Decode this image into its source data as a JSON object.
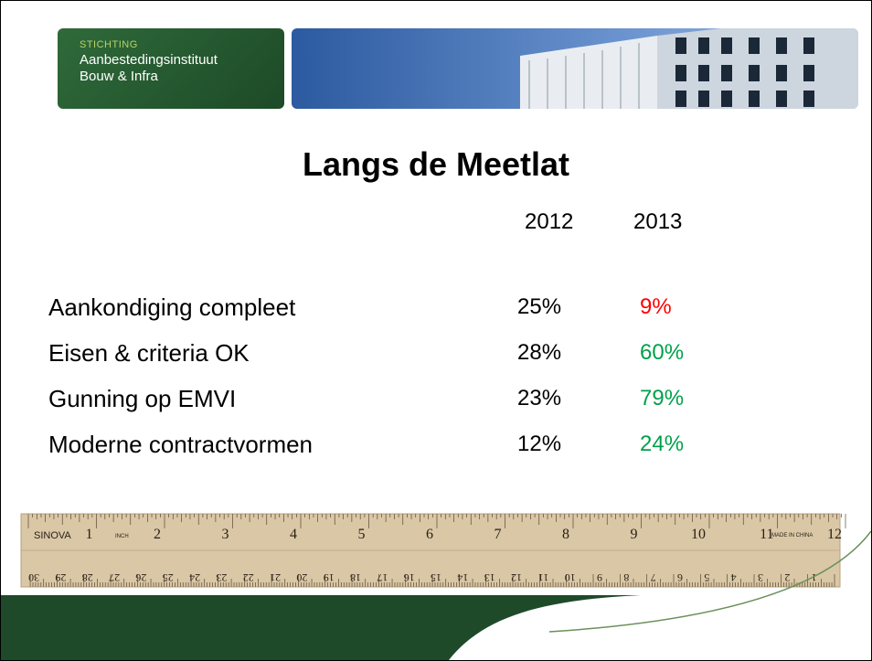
{
  "logo": {
    "line1": "STICHTING",
    "line2": "Aanbestedingsinstituut",
    "line3": "Bouw & Infra"
  },
  "title": "Langs de Meetlat",
  "table": {
    "header": [
      "2012",
      "2013"
    ],
    "rows": [
      {
        "label": "Aankondiging compleet",
        "values": [
          "25%",
          "9%"
        ],
        "color_2013": "#ff0000"
      },
      {
        "label": "Eisen & criteria OK",
        "values": [
          "28%",
          "60%"
        ],
        "color_2013": "#00a04a"
      },
      {
        "label": "Gunning op EMVI",
        "values": [
          "23%",
          "79%"
        ],
        "color_2013": "#00a04a"
      },
      {
        "label": "Moderne contractvormen",
        "values": [
          "12%",
          "24%"
        ],
        "color_2013": "#00a04a"
      }
    ]
  },
  "ruler": {
    "brand": "SINOVA",
    "unit": "INCH",
    "made": "MADE IN CHINA",
    "inches": [
      "1",
      "2",
      "3",
      "4",
      "5",
      "6",
      "7",
      "8",
      "9",
      "10",
      "11",
      "12"
    ],
    "cm": [
      "1",
      "2",
      "3",
      "4",
      "5",
      "6",
      "7",
      "8",
      "9",
      "10",
      "11",
      "12",
      "13",
      "14",
      "15",
      "16",
      "17",
      "18",
      "19",
      "20",
      "21",
      "22",
      "23",
      "24",
      "25",
      "26",
      "27",
      "28",
      "29",
      "30"
    ]
  }
}
